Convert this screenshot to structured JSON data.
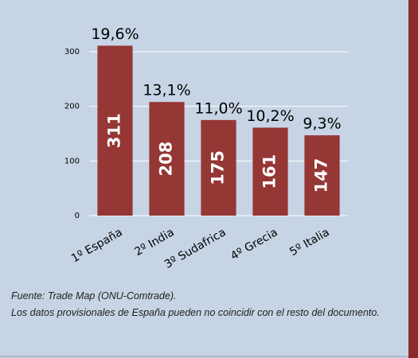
{
  "chart_data": {
    "type": "bar",
    "categories": [
      "1º España",
      "2º India",
      "3º Sudafrica",
      "4º Grecia",
      "5º Italia"
    ],
    "values": [
      311,
      208,
      175,
      161,
      147
    ],
    "color": "#953735",
    "share": {
      "values": [
        19.6,
        13.1,
        11.0,
        10.2,
        9.3
      ],
      "value_labels": [
        "19,6%",
        "13,1%",
        "11,0%",
        "10,2%",
        "9,3%"
      ]
    },
    "ylim": [
      0,
      300
    ],
    "yticks": [
      0,
      100,
      200,
      300
    ],
    "grid": true,
    "notes": [
      "Fuente: Trade Map (ONU-Comtrade).",
      "Los datos provisionales de España pueden no coincidir con el resto del documento."
    ]
  }
}
